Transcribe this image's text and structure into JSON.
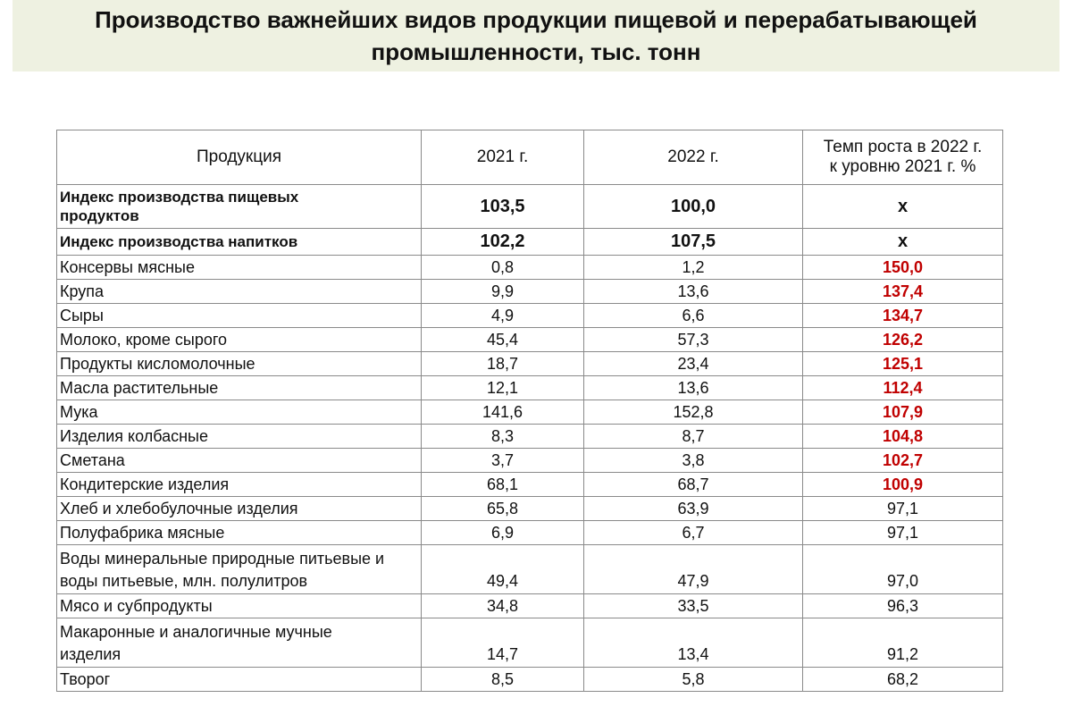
{
  "title": {
    "line1": "Производство важнейших видов продукции пищевой и перерабатывающей",
    "line2": "промышленности, тыс. тонн"
  },
  "table": {
    "headers": {
      "product": "Продукция",
      "y2021": "2021 г.",
      "y2022": "2022  г.",
      "growth_line1": "Темп роста в 2022 г.",
      "growth_line2": "к уровню 2021 г. %"
    },
    "index_rows": [
      {
        "name_line1": "Индекс производства пищевых",
        "name_line2": "продуктов",
        "v2021": "103,5",
        "v2022": "100,0",
        "growth": "х"
      },
      {
        "name_line1": "Индекс производства напитков",
        "name_line2": "",
        "v2021": "102,2",
        "v2022": "107,5",
        "growth": "х"
      }
    ],
    "rows": [
      {
        "name_line1": "Консервы мясные",
        "name_line2": "",
        "v2021": "0,8",
        "v2022": "1,2",
        "growth": "150,0",
        "highlight": true
      },
      {
        "name_line1": "Крупа",
        "name_line2": "",
        "v2021": "9,9",
        "v2022": "13,6",
        "growth": "137,4",
        "highlight": true
      },
      {
        "name_line1": "Сыры",
        "name_line2": "",
        "v2021": "4,9",
        "v2022": "6,6",
        "growth": "134,7",
        "highlight": true
      },
      {
        "name_line1": "Молоко, кроме сырого",
        "name_line2": "",
        "v2021": "45,4",
        "v2022": "57,3",
        "growth": "126,2",
        "highlight": true
      },
      {
        "name_line1": "Продукты кисломолочные",
        "name_line2": "",
        "v2021": "18,7",
        "v2022": "23,4",
        "growth": "125,1",
        "highlight": true
      },
      {
        "name_line1": "Масла растительные",
        "name_line2": "",
        "v2021": "12,1",
        "v2022": "13,6",
        "growth": "112,4",
        "highlight": true
      },
      {
        "name_line1": "Мука",
        "name_line2": "",
        "v2021": "141,6",
        "v2022": "152,8",
        "growth": "107,9",
        "highlight": true
      },
      {
        "name_line1": "Изделия  колбасные",
        "name_line2": "",
        "v2021": "8,3",
        "v2022": "8,7",
        "growth": "104,8",
        "highlight": true
      },
      {
        "name_line1": "Сметана",
        "name_line2": "",
        "v2021": "3,7",
        "v2022": "3,8",
        "growth": "102,7",
        "highlight": true
      },
      {
        "name_line1": "Кондитерские  изделия",
        "name_line2": "",
        "v2021": "68,1",
        "v2022": "68,7",
        "growth": "100,9",
        "highlight": true
      },
      {
        "name_line1": "Хлеб и хлебобулочные  изделия",
        "name_line2": "",
        "v2021": "65,8",
        "v2022": "63,9",
        "growth": "97,1",
        "highlight": false
      },
      {
        "name_line1": "Полуфабрика  мясные",
        "name_line2": "",
        "v2021": "6,9",
        "v2022": "6,7",
        "growth": "97,1",
        "highlight": false
      },
      {
        "name_line1": "Воды минеральные природные питьевые и",
        "name_line2": "воды питьевые, млн.  полулитров",
        "v2021": "49,4",
        "v2022": "47,9",
        "growth": "97,0",
        "highlight": false
      },
      {
        "name_line1": "Мясо и субпродукты",
        "name_line2": "",
        "v2021": "34,8",
        "v2022": "33,5",
        "growth": "96,3",
        "highlight": false
      },
      {
        "name_line1": "Макаронные  и аналогичные  мучные",
        "name_line2": "изделия",
        "v2021": "14,7",
        "v2022": "13,4",
        "growth": "91,2",
        "highlight": false
      },
      {
        "name_line1": "Творог",
        "name_line2": "",
        "v2021": "8,5",
        "v2022": "5,8",
        "growth": "68,2",
        "highlight": false
      }
    ]
  }
}
